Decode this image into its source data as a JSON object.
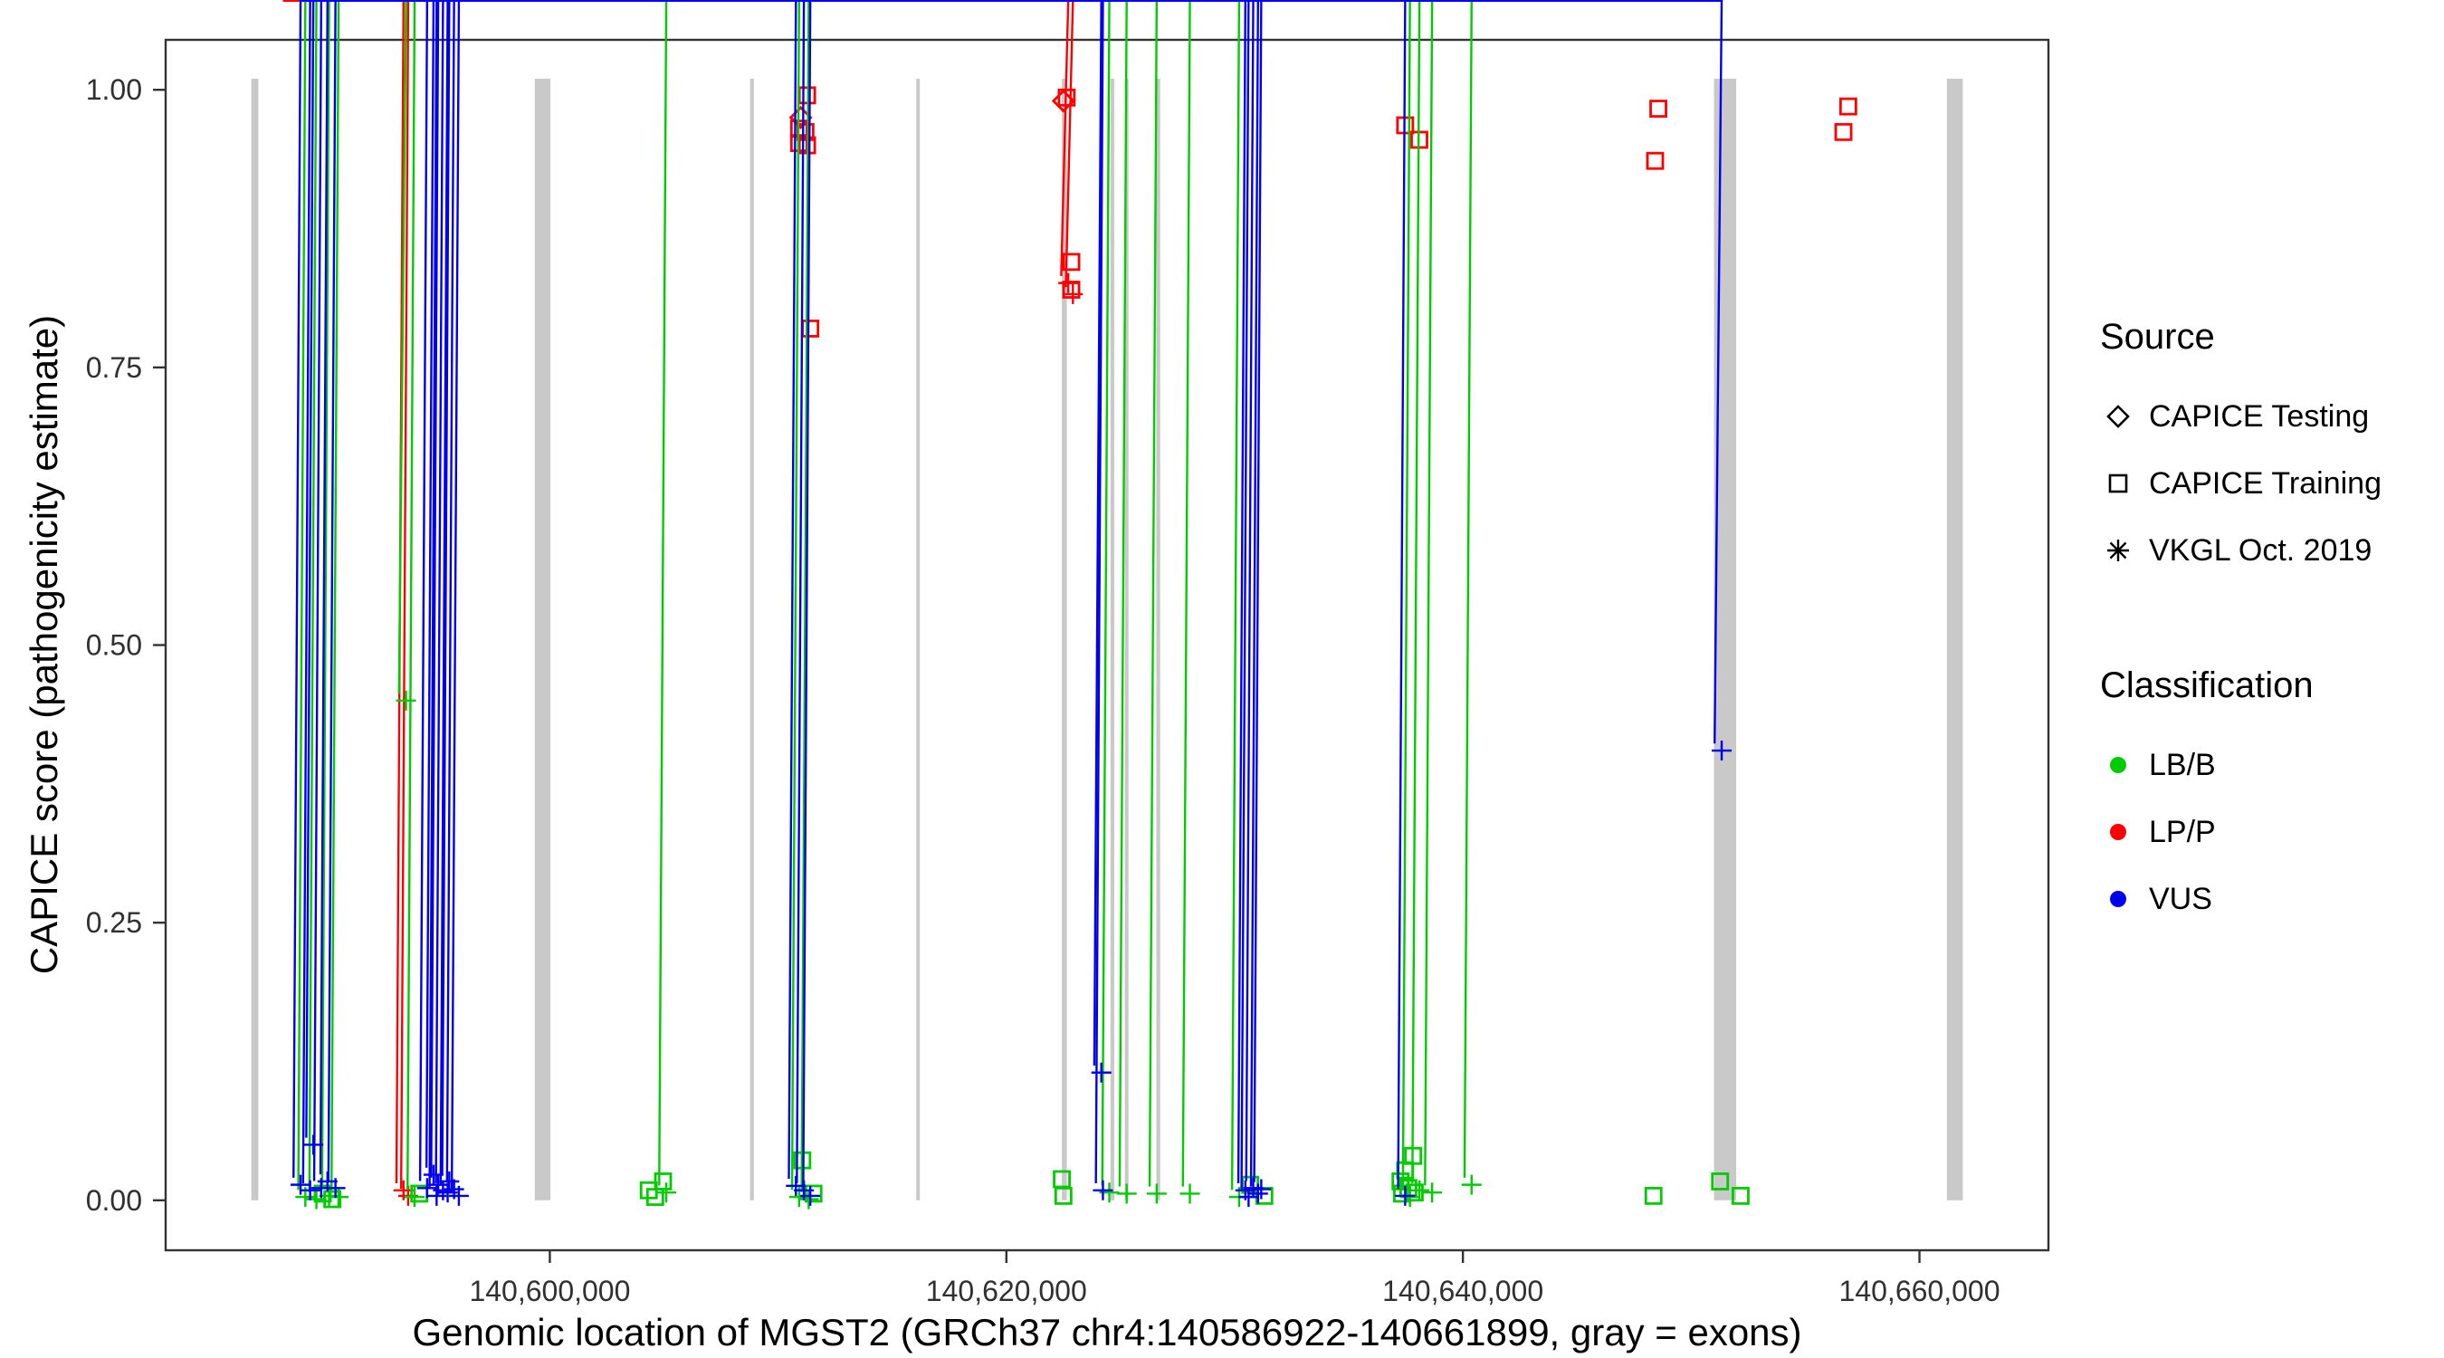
{
  "colors": {
    "classification": {
      "LB/B": "#00CC00",
      "LP/P": "#FF0000",
      "VUS": "#0000EE"
    },
    "exon": "#C9C9C9",
    "axis": "#333333",
    "tick_text": "#303030"
  },
  "legend": {
    "source": {
      "title": "Source",
      "items": [
        {
          "shape": "diamond",
          "label": "CAPICE Testing"
        },
        {
          "shape": "square",
          "label": "CAPICE Training"
        },
        {
          "shape": "asterisk",
          "label": "VKGL Oct. 2019"
        }
      ]
    },
    "classification": {
      "title": "Classification",
      "items": [
        {
          "cls": "LB/B",
          "label": "LB/B"
        },
        {
          "cls": "LP/P",
          "label": "LP/P"
        },
        {
          "cls": "VUS",
          "label": "VUS"
        }
      ]
    }
  },
  "chart_data": {
    "type": "scatter",
    "title": "",
    "xlabel": "Genomic location of MGST2 (GRCh37 chr4:140586922-140661899, gray = exons)",
    "ylabel": "CAPICE score (pathogenicity estimate)",
    "x_domain": [
      140583170,
      140665650
    ],
    "y_domain": [
      -0.045,
      1.045
    ],
    "grid": "off",
    "legend_position": "right",
    "x_ticks": [
      {
        "value": 140600000,
        "label": "140,600,000"
      },
      {
        "value": 140620000,
        "label": "140,620,000"
      },
      {
        "value": 140640000,
        "label": "140,640,000"
      },
      {
        "value": 140660000,
        "label": "140,660,000"
      }
    ],
    "y_ticks": [
      {
        "value": 0.0,
        "label": "0.00"
      },
      {
        "value": 0.25,
        "label": "0.25"
      },
      {
        "value": 0.5,
        "label": "0.50"
      },
      {
        "value": 0.75,
        "label": "0.75"
      },
      {
        "value": 1.0,
        "label": "1.00"
      }
    ],
    "exon_y": [
      0,
      1.01
    ],
    "exons": [
      [
        140586922,
        140587230
      ],
      [
        140599340,
        140600030
      ],
      [
        140608770,
        140608940
      ],
      [
        140616050,
        140616200
      ],
      [
        140622430,
        140622650
      ],
      [
        140624560,
        140624730
      ],
      [
        140625190,
        140625350
      ],
      [
        140626570,
        140626740
      ],
      [
        140651000,
        140651970
      ],
      [
        140661200,
        140661899
      ]
    ],
    "shape_to_source": {
      "diamond": "CAPICE Testing",
      "square": "CAPICE Training",
      "asterisk": "VKGL Oct. 2019"
    },
    "points": [
      {
        "x": 140611270,
        "y": 0.995,
        "shape": "square",
        "cls": "LP/P"
      },
      {
        "x": 140610990,
        "y": 0.975,
        "shape": "diamond",
        "cls": "LP/P"
      },
      {
        "x": 140610920,
        "y": 0.965,
        "shape": "square",
        "cls": "LP/P"
      },
      {
        "x": 140611200,
        "y": 0.962,
        "shape": "square",
        "cls": "LP/P"
      },
      {
        "x": 140610920,
        "y": 0.952,
        "shape": "square",
        "cls": "LP/P"
      },
      {
        "x": 140611270,
        "y": 0.95,
        "shape": "square",
        "cls": "LP/P"
      },
      {
        "x": 140611410,
        "y": 0.785,
        "shape": "square",
        "cls": "LP/P"
      },
      {
        "x": 140622500,
        "y": 0.99,
        "shape": "diamond",
        "cls": "LP/P"
      },
      {
        "x": 140622640,
        "y": 0.993,
        "shape": "square",
        "cls": "LP/P"
      },
      {
        "x": 140622845,
        "y": 0.845,
        "shape": "square",
        "cls": "LP/P"
      },
      {
        "x": 140622710,
        "y": 0.826,
        "shape": "asterisk",
        "cls": "LP/P"
      },
      {
        "x": 140622915,
        "y": 0.816,
        "shape": "asterisk",
        "cls": "LP/P"
      },
      {
        "x": 140622845,
        "y": 0.82,
        "shape": "square",
        "cls": "LP/P"
      },
      {
        "x": 140637470,
        "y": 0.968,
        "shape": "square",
        "cls": "LP/P"
      },
      {
        "x": 140638090,
        "y": 0.955,
        "shape": "square",
        "cls": "LP/P"
      },
      {
        "x": 140648560,
        "y": 0.983,
        "shape": "square",
        "cls": "LP/P"
      },
      {
        "x": 140648420,
        "y": 0.936,
        "shape": "square",
        "cls": "LP/P"
      },
      {
        "x": 140656880,
        "y": 0.985,
        "shape": "square",
        "cls": "LP/P"
      },
      {
        "x": 140656670,
        "y": 0.962,
        "shape": "square",
        "cls": "LP/P"
      },
      {
        "x": 140593590,
        "y": 0.009,
        "shape": "asterisk",
        "cls": "LP/P"
      },
      {
        "x": 140593795,
        "y": 0.004,
        "shape": "asterisk",
        "cls": "LP/P"
      },
      {
        "x": 140593700,
        "y": 0.45,
        "shape": "asterisk",
        "cls": "LB/B"
      },
      {
        "x": 140589290,
        "y": 0.003,
        "shape": "asterisk",
        "cls": "LB/B"
      },
      {
        "x": 140589775,
        "y": 0.001,
        "shape": "asterisk",
        "cls": "LB/B"
      },
      {
        "x": 140590330,
        "y": 0.004,
        "shape": "asterisk",
        "cls": "LB/B"
      },
      {
        "x": 140590745,
        "y": 0.003,
        "shape": "asterisk",
        "cls": "LB/B"
      },
      {
        "x": 140590050,
        "y": 0.006,
        "shape": "square",
        "cls": "LB/B"
      },
      {
        "x": 140590470,
        "y": 0.001,
        "shape": "square",
        "cls": "LB/B"
      },
      {
        "x": 140594075,
        "y": 0.003,
        "shape": "asterisk",
        "cls": "LB/B"
      },
      {
        "x": 140594280,
        "y": 0.006,
        "shape": "square",
        "cls": "LB/B"
      },
      {
        "x": 140604335,
        "y": 0.009,
        "shape": "square",
        "cls": "LB/B"
      },
      {
        "x": 140604960,
        "y": 0.017,
        "shape": "square",
        "cls": "LB/B"
      },
      {
        "x": 140604615,
        "y": 0.003,
        "shape": "square",
        "cls": "LB/B"
      },
      {
        "x": 140605100,
        "y": 0.007,
        "shape": "asterisk",
        "cls": "LB/B"
      },
      {
        "x": 140611060,
        "y": 0.036,
        "shape": "square",
        "cls": "LB/B"
      },
      {
        "x": 140610920,
        "y": 0.003,
        "shape": "asterisk",
        "cls": "LB/B"
      },
      {
        "x": 140611340,
        "y": 0.001,
        "shape": "asterisk",
        "cls": "LB/B"
      },
      {
        "x": 140611550,
        "y": 0.006,
        "shape": "square",
        "cls": "LB/B"
      },
      {
        "x": 140622430,
        "y": 0.019,
        "shape": "square",
        "cls": "LB/B"
      },
      {
        "x": 140622500,
        "y": 0.004,
        "shape": "square",
        "cls": "LB/B"
      },
      {
        "x": 140624510,
        "y": 0.007,
        "shape": "asterisk",
        "cls": "LB/B"
      },
      {
        "x": 140625270,
        "y": 0.006,
        "shape": "asterisk",
        "cls": "LB/B"
      },
      {
        "x": 140626585,
        "y": 0.006,
        "shape": "asterisk",
        "cls": "LB/B"
      },
      {
        "x": 140628040,
        "y": 0.006,
        "shape": "asterisk",
        "cls": "LB/B"
      },
      {
        "x": 140630195,
        "y": 0.003,
        "shape": "asterisk",
        "cls": "LB/B"
      },
      {
        "x": 140630680,
        "y": 0.014,
        "shape": "square",
        "cls": "LB/B"
      },
      {
        "x": 140631300,
        "y": 0.004,
        "shape": "square",
        "cls": "LB/B"
      },
      {
        "x": 140637820,
        "y": 0.04,
        "shape": "square",
        "cls": "LB/B"
      },
      {
        "x": 140637470,
        "y": 0.027,
        "shape": "square",
        "cls": "LB/B"
      },
      {
        "x": 140637265,
        "y": 0.017,
        "shape": "square",
        "cls": "LB/B"
      },
      {
        "x": 140637610,
        "y": 0.011,
        "shape": "square",
        "cls": "LB/B"
      },
      {
        "x": 140637890,
        "y": 0.007,
        "shape": "square",
        "cls": "LB/B"
      },
      {
        "x": 140637335,
        "y": 0.006,
        "shape": "square",
        "cls": "LB/B"
      },
      {
        "x": 140638095,
        "y": 0.009,
        "shape": "asterisk",
        "cls": "LB/B"
      },
      {
        "x": 140637680,
        "y": 0.003,
        "shape": "asterisk",
        "cls": "LB/B"
      },
      {
        "x": 140638650,
        "y": 0.007,
        "shape": "asterisk",
        "cls": "LB/B"
      },
      {
        "x": 140640380,
        "y": 0.014,
        "shape": "asterisk",
        "cls": "LB/B"
      },
      {
        "x": 140648350,
        "y": 0.004,
        "shape": "square",
        "cls": "LB/B"
      },
      {
        "x": 140651265,
        "y": 0.017,
        "shape": "square",
        "cls": "LB/B"
      },
      {
        "x": 140652165,
        "y": 0.004,
        "shape": "square",
        "cls": "LB/B"
      },
      {
        "x": 140651335,
        "y": 0.405,
        "shape": "asterisk",
        "cls": "VUS"
      },
      {
        "x": 140624160,
        "y": 0.115,
        "shape": "asterisk",
        "cls": "VUS"
      },
      {
        "x": 140589640,
        "y": 0.05,
        "shape": "asterisk",
        "cls": "VUS"
      },
      {
        "x": 140589080,
        "y": 0.014,
        "shape": "asterisk",
        "cls": "VUS"
      },
      {
        "x": 140589500,
        "y": 0.009,
        "shape": "asterisk",
        "cls": "VUS"
      },
      {
        "x": 140589985,
        "y": 0.011,
        "shape": "asterisk",
        "cls": "VUS"
      },
      {
        "x": 140590260,
        "y": 0.017,
        "shape": "asterisk",
        "cls": "VUS"
      },
      {
        "x": 140590610,
        "y": 0.011,
        "shape": "asterisk",
        "cls": "VUS"
      },
      {
        "x": 140594625,
        "y": 0.011,
        "shape": "asterisk",
        "cls": "VUS"
      },
      {
        "x": 140594905,
        "y": 0.023,
        "shape": "asterisk",
        "cls": "VUS"
      },
      {
        "x": 140595110,
        "y": 0.014,
        "shape": "asterisk",
        "cls": "VUS"
      },
      {
        "x": 140595320,
        "y": 0.009,
        "shape": "asterisk",
        "cls": "VUS"
      },
      {
        "x": 140595595,
        "y": 0.017,
        "shape": "asterisk",
        "cls": "VUS"
      },
      {
        "x": 140595805,
        "y": 0.01,
        "shape": "asterisk",
        "cls": "VUS"
      },
      {
        "x": 140596015,
        "y": 0.004,
        "shape": "asterisk",
        "cls": "VUS"
      },
      {
        "x": 140595040,
        "y": 0.004,
        "shape": "asterisk",
        "cls": "VUS"
      },
      {
        "x": 140595525,
        "y": 0.007,
        "shape": "asterisk",
        "cls": "VUS"
      },
      {
        "x": 140610780,
        "y": 0.013,
        "shape": "asterisk",
        "cls": "VUS"
      },
      {
        "x": 140611130,
        "y": 0.009,
        "shape": "asterisk",
        "cls": "VUS"
      },
      {
        "x": 140611410,
        "y": 0.004,
        "shape": "asterisk",
        "cls": "VUS"
      },
      {
        "x": 140624230,
        "y": 0.009,
        "shape": "asterisk",
        "cls": "VUS"
      },
      {
        "x": 140630470,
        "y": 0.009,
        "shape": "asterisk",
        "cls": "VUS"
      },
      {
        "x": 140630815,
        "y": 0.011,
        "shape": "asterisk",
        "cls": "VUS"
      },
      {
        "x": 140631025,
        "y": 0.006,
        "shape": "asterisk",
        "cls": "VUS"
      },
      {
        "x": 140631165,
        "y": 0.01,
        "shape": "asterisk",
        "cls": "VUS"
      },
      {
        "x": 140630610,
        "y": 0.003,
        "shape": "asterisk",
        "cls": "VUS"
      },
      {
        "x": 140637470,
        "y": 0.004,
        "shape": "asterisk",
        "cls": "VUS"
      }
    ]
  }
}
